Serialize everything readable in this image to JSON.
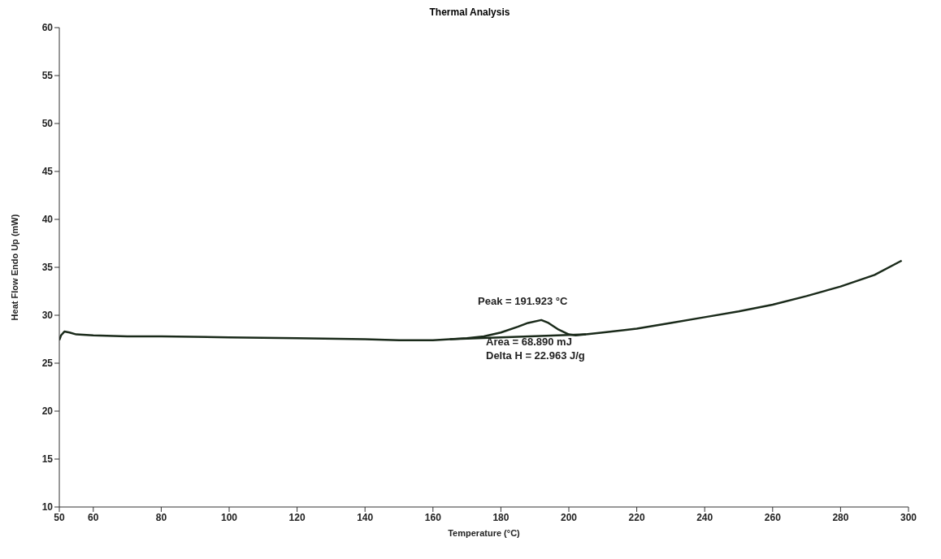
{
  "chart_data": {
    "type": "line",
    "title": "Thermal Analysis",
    "xlabel": "Temperature (°C)",
    "ylabel": "Heat Flow Endo Up (mW)",
    "xlim": [
      50,
      300
    ],
    "xticks": [
      50,
      60,
      80,
      100,
      120,
      140,
      160,
      180,
      200,
      220,
      240,
      260,
      280,
      300
    ],
    "ylim": [
      10,
      60
    ],
    "yticks": [
      10,
      15,
      20,
      25,
      30,
      35,
      40,
      45,
      50,
      55,
      60
    ],
    "grid": false,
    "marker": "none",
    "series": [
      {
        "color": "#1a2a1a",
        "x": [
          50,
          50.5,
          51.5,
          53,
          55,
          60,
          70,
          80,
          100,
          120,
          140,
          150,
          160,
          165,
          170,
          175,
          180,
          185,
          188,
          191.9,
          194,
          197,
          200,
          202,
          205,
          210,
          220,
          230,
          240,
          250,
          260,
          270,
          280,
          290,
          298
        ],
        "values": [
          27.4,
          27.9,
          28.3,
          28.2,
          28.0,
          27.9,
          27.8,
          27.8,
          27.7,
          27.6,
          27.5,
          27.4,
          27.4,
          27.5,
          27.6,
          27.8,
          28.2,
          28.8,
          29.2,
          29.5,
          29.2,
          28.5,
          28.0,
          27.9,
          28.0,
          28.2,
          28.6,
          29.2,
          29.8,
          30.4,
          31.1,
          32.0,
          33.0,
          34.2,
          35.7
        ]
      },
      {
        "color": "#1a2a1a",
        "x": [
          165,
          205
        ],
        "values": [
          27.5,
          28.0
        ]
      }
    ],
    "annotations": [
      "Peak = 191.923 °C",
      "Area = 68.890 mJ",
      "Delta H = 22.963 J/g"
    ]
  }
}
